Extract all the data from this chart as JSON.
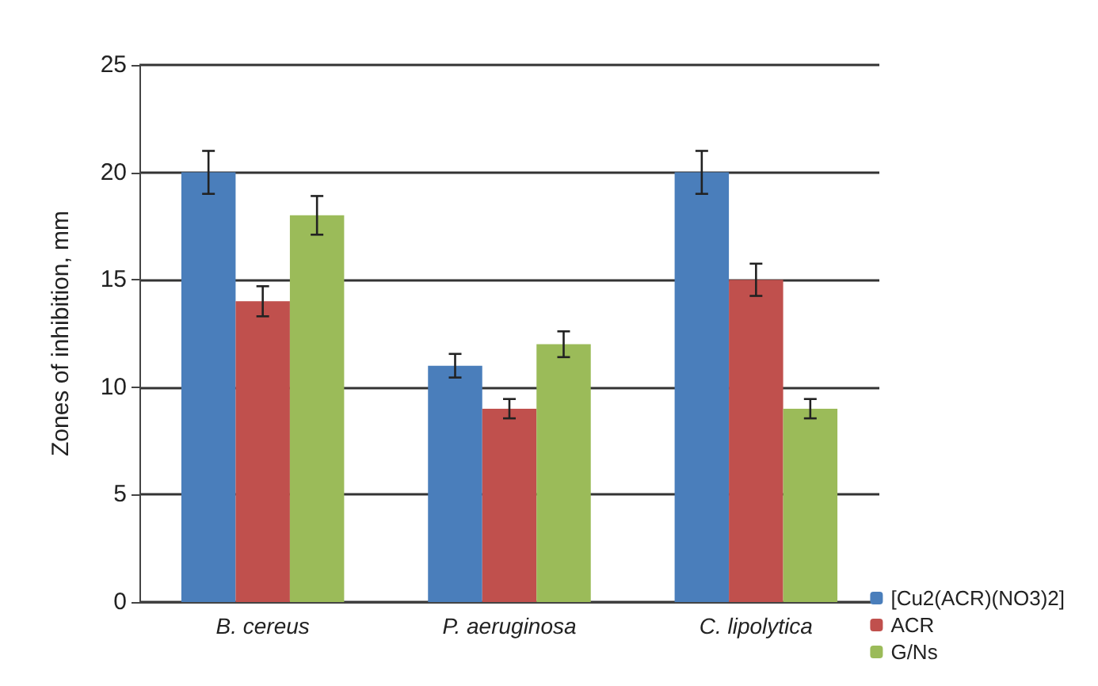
{
  "chart_data": {
    "type": "bar",
    "ylabel": "Zones of inhibition, mm",
    "categories": [
      "B. cereus",
      "P. aeruginosa",
      "C. lipolytica"
    ],
    "series": [
      {
        "name": "[Cu2(ACR)(NO3)2]",
        "color": "#4a7ebb",
        "values": [
          20,
          11,
          20
        ],
        "errors": [
          1,
          0.55,
          1
        ]
      },
      {
        "name": "ACR",
        "color": "#c0504d",
        "values": [
          14,
          9,
          15
        ],
        "errors": [
          0.7,
          0.45,
          0.75
        ]
      },
      {
        "name": "G/Ns",
        "color": "#9bbb59",
        "values": [
          18,
          12,
          9
        ],
        "errors": [
          0.9,
          0.6,
          0.45
        ]
      }
    ],
    "ylim": [
      0,
      25
    ],
    "yticks": [
      0,
      5,
      10,
      15,
      20,
      25
    ],
    "grid": "y",
    "legend": "bottom right"
  }
}
